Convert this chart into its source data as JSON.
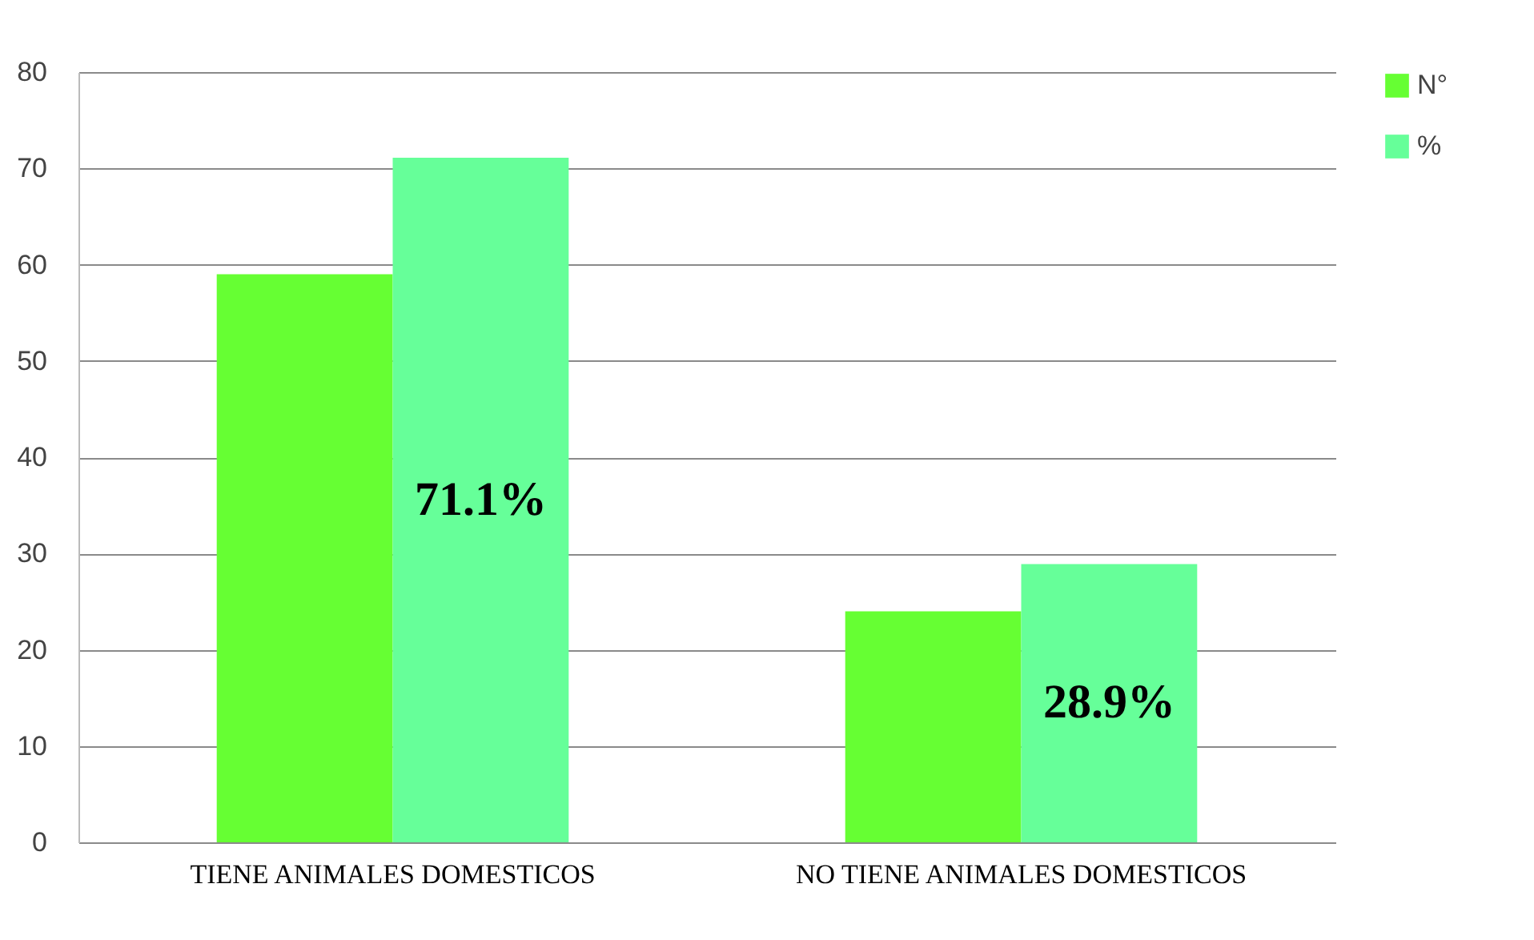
{
  "chart_data": {
    "type": "bar",
    "categories": [
      "TIENE ANIMALES DOMESTICOS",
      "NO TIENE ANIMALES DOMESTICOS"
    ],
    "series": [
      {
        "name": "N°",
        "color": "#66ff33",
        "values": [
          59,
          24
        ]
      },
      {
        "name": "%",
        "color": "#66ff99",
        "values": [
          71.1,
          28.9
        ],
        "value_labels": [
          "71.1%",
          "28.9%"
        ]
      }
    ],
    "ylim": [
      0,
      80
    ],
    "yticks": [
      0,
      10,
      20,
      30,
      40,
      50,
      60,
      70,
      80
    ],
    "grid": "y",
    "legend": "right"
  }
}
